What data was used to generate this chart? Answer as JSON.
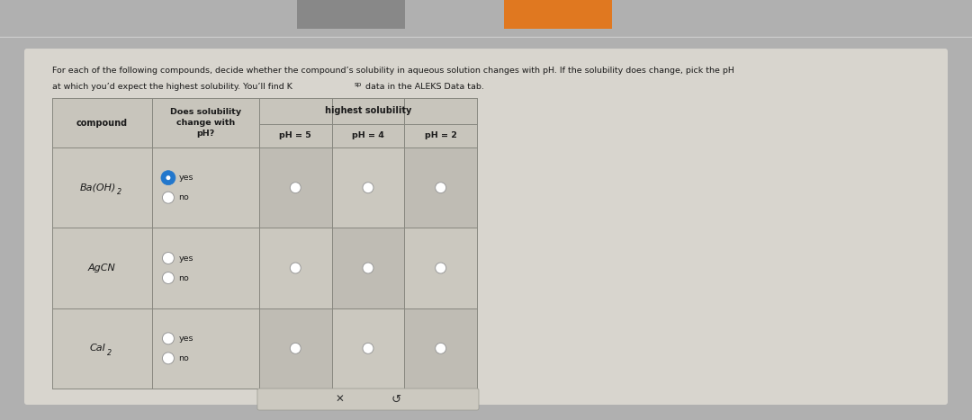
{
  "title_line1": "For each of the following compounds, decide whether the compound’s solubility in aqueous solution changes with pH. If the solubility does change, pick the pH",
  "title_line2a": "at which you’d expect the highest solubility. You’ll find K",
  "title_line2_sub": "sp",
  "title_line2b": " data in the ALEKS Data tab.",
  "top_bar_color": "#ffffff",
  "top_bar_accent1": "#888888",
  "top_bar_accent2": "#e07820",
  "outer_bg": "#b0b0b0",
  "card_bg": "#d8d5ce",
  "table_header_bg": "#c8c5bc",
  "table_cell_bg_light": "#cbc8bf",
  "table_cell_bg_dark": "#bfbcb4",
  "table_border_color": "#888880",
  "text_color": "#1a1a1a",
  "ph_headers": [
    "pH = 5",
    "pH = 4",
    "pH = 2"
  ],
  "compounds": [
    "Ba(OH)",
    "AgCN",
    "CaI"
  ],
  "compound_subs": [
    "2",
    "",
    "2"
  ],
  "radio_blue_fill": "#2277cc",
  "radio_blue_border": "#2277cc",
  "radio_empty_fill": "#ffffff",
  "radio_empty_border": "#999999",
  "btn_bg": "#ccc9c0",
  "btn_border": "#999990"
}
